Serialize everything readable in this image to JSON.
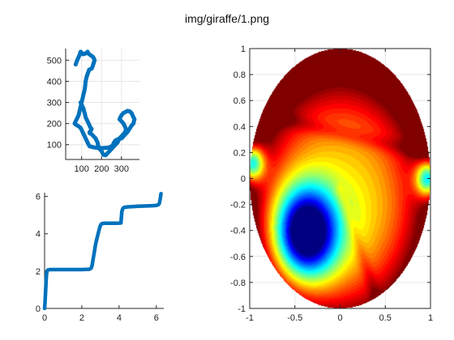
{
  "figure": {
    "title": "img/giraffe/1.png"
  },
  "colors": {
    "series": "#0072BD",
    "axis": "#262626",
    "grid": "#e6e6e6"
  },
  "chart_data": [
    {
      "id": "giraffe-outline",
      "type": "line",
      "xlim": [
        20,
        390
      ],
      "ylim": [
        30,
        555
      ],
      "xticks": [
        100,
        200,
        300
      ],
      "yticks": [
        100,
        200,
        300,
        400,
        500
      ],
      "series": [
        {
          "x": [
            70,
            80,
            90,
            95,
            100,
            108,
            115,
            125,
            130,
            135,
            150,
            158,
            165,
            160,
            155,
            150,
            138,
            132,
            125,
            120,
            118,
            115,
            110,
            105,
            100,
            95,
            90,
            85,
            75,
            70,
            65,
            70,
            80,
            88,
            95,
            100,
            105,
            110,
            115,
            120,
            125,
            130,
            135,
            140,
            150,
            160,
            170,
            180,
            190,
            200,
            210,
            220,
            230,
            240,
            250,
            258,
            262,
            270,
            280,
            290,
            300,
            310,
            320,
            330,
            340,
            350,
            360,
            362,
            365,
            360,
            355,
            350,
            345,
            340,
            330,
            320,
            310,
            300,
            295,
            290,
            300,
            310,
            315,
            320,
            322,
            318,
            310,
            300,
            290,
            285,
            280,
            270,
            260,
            250,
            240,
            230,
            225,
            222,
            220,
            210,
            205,
            200,
            190,
            185,
            182,
            180,
            175,
            170,
            160,
            150,
            145,
            140,
            140,
            145,
            148,
            150,
            145,
            140,
            135,
            130,
            125,
            120,
            118,
            115,
            112,
            110,
            105,
            100,
            95
          ],
          "y": [
            480,
            505,
            525,
            540,
            535,
            528,
            530,
            535,
            540,
            530,
            520,
            515,
            500,
            485,
            470,
            460,
            455,
            440,
            420,
            400,
            380,
            360,
            340,
            320,
            300,
            280,
            260,
            240,
            220,
            210,
            200,
            195,
            190,
            185,
            180,
            170,
            160,
            150,
            140,
            130,
            120,
            110,
            100,
            92,
            90,
            88,
            86,
            85,
            84,
            84,
            84,
            85,
            86,
            88,
            92,
            100,
            110,
            120,
            125,
            128,
            130,
            140,
            150,
            160,
            175,
            190,
            200,
            210,
            220,
            230,
            240,
            250,
            255,
            258,
            260,
            255,
            250,
            240,
            230,
            220,
            210,
            200,
            190,
            180,
            170,
            160,
            150,
            140,
            130,
            120,
            110,
            100,
            90,
            80,
            70,
            60,
            55,
            52,
            50,
            52,
            60,
            70,
            80,
            90,
            100,
            110,
            120,
            130,
            140,
            150,
            152,
            155,
            160,
            165,
            170,
            175,
            180,
            190,
            200,
            210,
            220,
            230,
            240,
            250,
            260,
            270,
            280,
            290,
            300
          ]
        }
      ]
    },
    {
      "id": "angle-function",
      "type": "line",
      "xlim": [
        0,
        6.4
      ],
      "ylim": [
        0,
        6.2
      ],
      "xticks": [
        0,
        2,
        4,
        6
      ],
      "yticks": [
        0,
        2,
        4,
        6
      ],
      "series": [
        {
          "x": [
            0,
            0.02,
            0.05,
            0.08,
            0.1,
            0.13,
            0.16,
            0.2,
            0.3,
            0.5,
            0.8,
            1.0,
            1.5,
            2.0,
            2.4,
            2.5,
            2.55,
            2.6,
            2.65,
            2.7,
            2.75,
            2.8,
            2.85,
            2.9,
            2.95,
            3.0,
            3.05,
            3.1,
            3.2,
            3.4,
            3.6,
            3.8,
            4.0,
            4.1,
            4.15,
            4.2,
            4.25,
            4.3,
            4.5,
            4.8,
            5.0,
            5.2,
            5.5,
            5.8,
            6.0,
            6.1,
            6.15,
            6.2,
            6.25
          ],
          "y": [
            0,
            0.3,
            0.8,
            1.4,
            1.8,
            2.0,
            2.05,
            2.07,
            2.08,
            2.08,
            2.08,
            2.08,
            2.08,
            2.08,
            2.1,
            2.15,
            2.3,
            2.6,
            2.9,
            3.2,
            3.5,
            3.7,
            3.9,
            4.1,
            4.3,
            4.45,
            4.52,
            4.55,
            4.56,
            4.56,
            4.56,
            4.56,
            4.57,
            4.58,
            5.2,
            5.35,
            5.4,
            5.42,
            5.44,
            5.46,
            5.47,
            5.48,
            5.49,
            5.5,
            5.52,
            5.55,
            5.6,
            5.8,
            6.15
          ]
        }
      ]
    },
    {
      "id": "disk-potential",
      "type": "heatmap",
      "xlim": [
        -1,
        1
      ],
      "ylim": [
        -1,
        1
      ],
      "xticks": [
        -1,
        -0.5,
        0,
        0.5,
        1
      ],
      "yticks": [
        -1,
        -0.8,
        -0.6,
        -0.4,
        -0.2,
        0,
        0.2,
        0.4,
        0.6,
        0.8,
        1
      ],
      "colormap": "jet",
      "features": [
        {
          "kind": "minimum",
          "x": -0.38,
          "y": -0.42
        },
        {
          "kind": "minimum",
          "x": -0.98,
          "y": 0.12
        },
        {
          "kind": "minimum",
          "x": 0.98,
          "y": 0.0
        },
        {
          "kind": "ridge",
          "from": [
            -0.9,
            0.5
          ],
          "to": [
            0.9,
            0.2
          ]
        },
        {
          "kind": "ridge",
          "from": [
            0.0,
            -0.1
          ],
          "to": [
            0.42,
            -0.95
          ]
        }
      ]
    }
  ]
}
